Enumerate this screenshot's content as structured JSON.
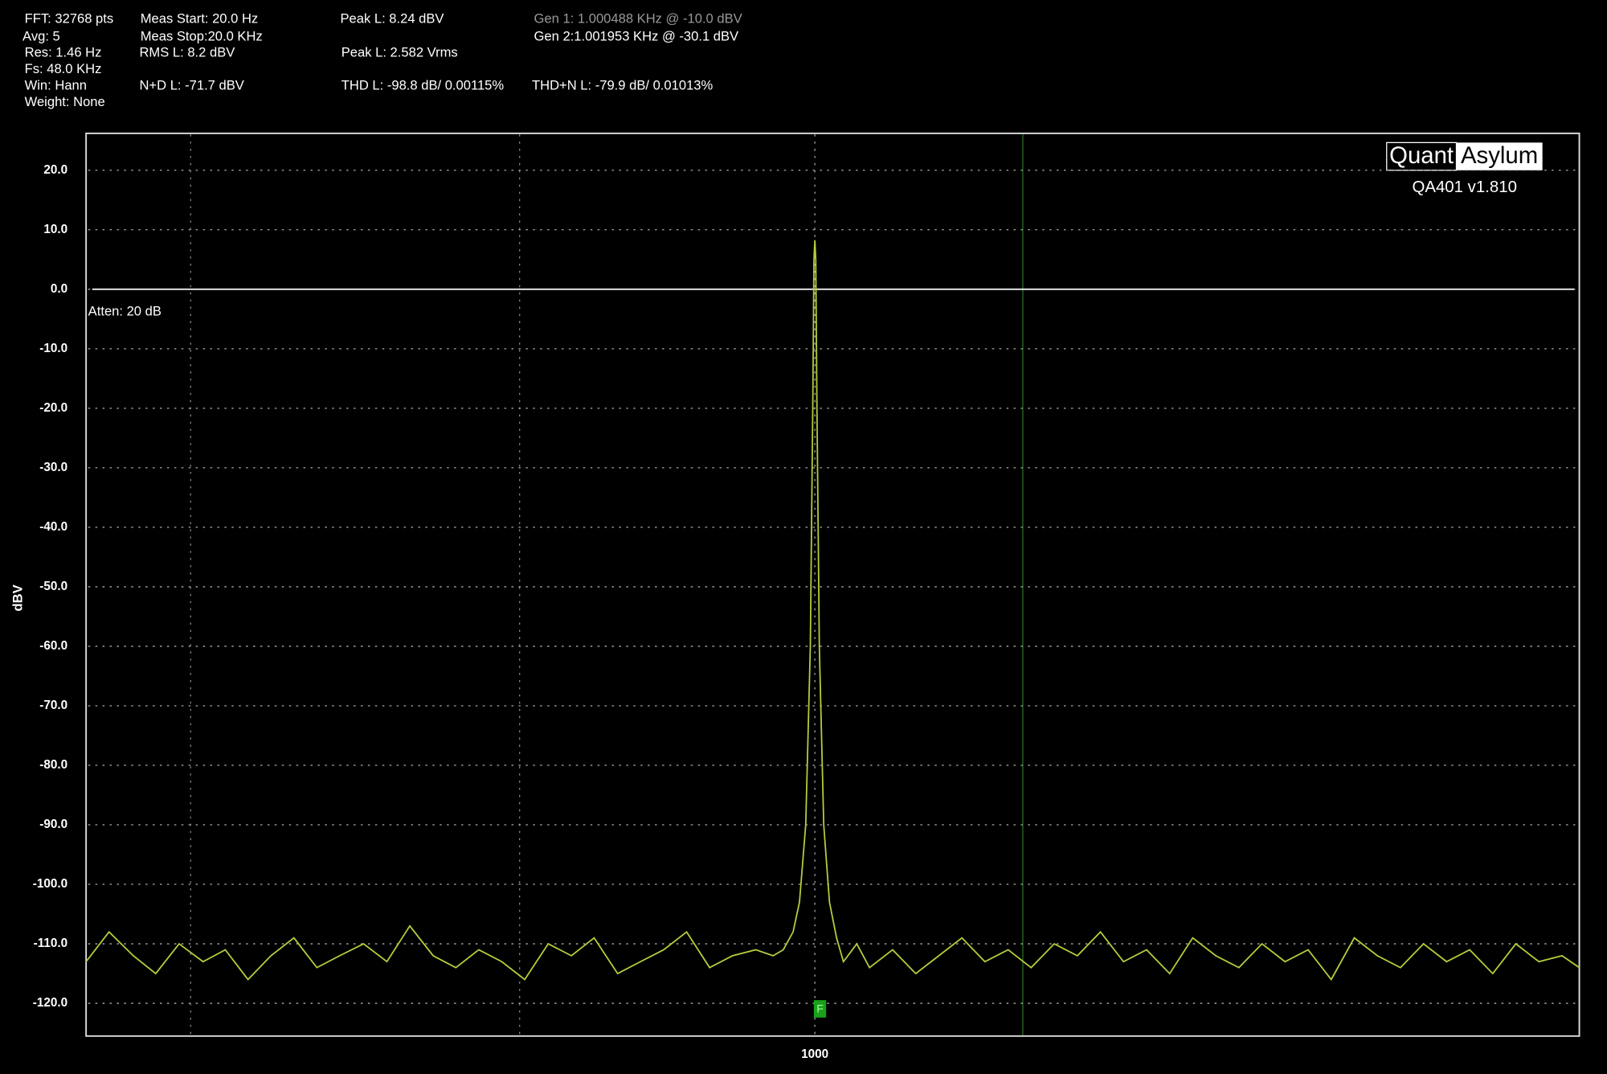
{
  "chart_data": {
    "type": "line",
    "y_label": "dBV",
    "annotations": [
      "FFT: 32768 pts",
      "Avg: 5",
      "Res: 1.46 Hz",
      "Fs: 48.0 KHz",
      "Win: Hann",
      "Weight: None",
      "Meas Start: 20.0 Hz",
      "Meas Stop:20.0 KHz",
      "RMS L: 8.2 dBV",
      "N+D L: -71.7 dBV",
      "Peak L: 8.24 dBV",
      "Peak L: 2.582 Vrms",
      "THD L: -98.8 dB/ 0.00115%",
      "Gen 1: 1.000488 KHz @ -10.0  dBV",
      "Gen 2:1.001953 KHz @ -30.1  dBV",
      "THD+N L: -79.9 dB/ 0.01013%",
      "Atten: 20 dB"
    ],
    "logo": [
      "Quant",
      "Asylum"
    ],
    "version": "QA401 v1.810",
    "marker_label": "F",
    "x": [
      88,
      95,
      103,
      111,
      120,
      130,
      140,
      151,
      163,
      176,
      190,
      205,
      222,
      240,
      259,
      280,
      302,
      326,
      352,
      380,
      411,
      444,
      479,
      518,
      559,
      604,
      652,
      704,
      760,
      821,
      870,
      900,
      930,
      950,
      970,
      985,
      993,
      997,
      1000,
      1003,
      1007,
      1015,
      1030,
      1050,
      1075,
      1100,
      1150,
      1200,
      1296,
      1400,
      1512,
      1633,
      1763,
      1905,
      2057,
      2222,
      2400,
      2592,
      2799,
      3023,
      3265,
      3526,
      3808,
      4113,
      4442,
      4797,
      5181,
      5596,
      6043,
      6527,
      7049,
      7613,
      8222,
      8880,
      9590,
      10357,
      11186,
      12081,
      12800
    ],
    "series": [
      {
        "color": "#b8cc3c",
        "values": [
          -113,
          -108,
          -112,
          -115,
          -110,
          -113,
          -111,
          -116,
          -112,
          -109,
          -114,
          -112,
          -110,
          -113,
          -107,
          -112,
          -114,
          -111,
          -113,
          -116,
          -110,
          -112,
          -109,
          -115,
          -113,
          -111,
          -108,
          -114,
          -112,
          -111,
          -112,
          -111,
          -108,
          -103,
          -90,
          -60,
          -20,
          5,
          8.24,
          5,
          -20,
          -60,
          -90,
          -103,
          -109,
          -113,
          -110,
          -114,
          -111,
          -115,
          -112,
          -109,
          -113,
          -111,
          -114,
          -110,
          -112,
          -108,
          -113,
          -111,
          -115,
          -109,
          -112,
          -114,
          -110,
          -113,
          -111,
          -116,
          -109,
          -112,
          -114,
          -110,
          -113,
          -111,
          -115,
          -110,
          -113,
          -112,
          -114
        ]
      }
    ],
    "log_x": true,
    "xlim": [
      88,
      12800
    ],
    "xticks": [
      1000
    ],
    "ylim": [
      -125.5,
      26.2
    ],
    "yticks": [
      {
        "value": 20,
        "label": "20.0"
      },
      {
        "value": 10,
        "label": "10.0"
      },
      {
        "value": 0,
        "label": "0.0"
      },
      {
        "value": -10,
        "label": "-10.0"
      },
      {
        "value": -20,
        "label": "-20.0"
      },
      {
        "value": -30,
        "label": "-30.0"
      },
      {
        "value": -40,
        "label": "-40.0"
      },
      {
        "value": -50,
        "label": "-50.0"
      },
      {
        "value": -60,
        "label": "-60.0"
      },
      {
        "value": -70,
        "label": "-70.0"
      },
      {
        "value": -80,
        "label": "-80.0"
      },
      {
        "value": -90,
        "label": "-90.0"
      },
      {
        "value": -100,
        "label": "-100.0"
      },
      {
        "value": -110,
        "label": "-110.0"
      },
      {
        "value": -120,
        "label": "-120.0"
      }
    ],
    "reference_line": 0,
    "grid": true
  }
}
